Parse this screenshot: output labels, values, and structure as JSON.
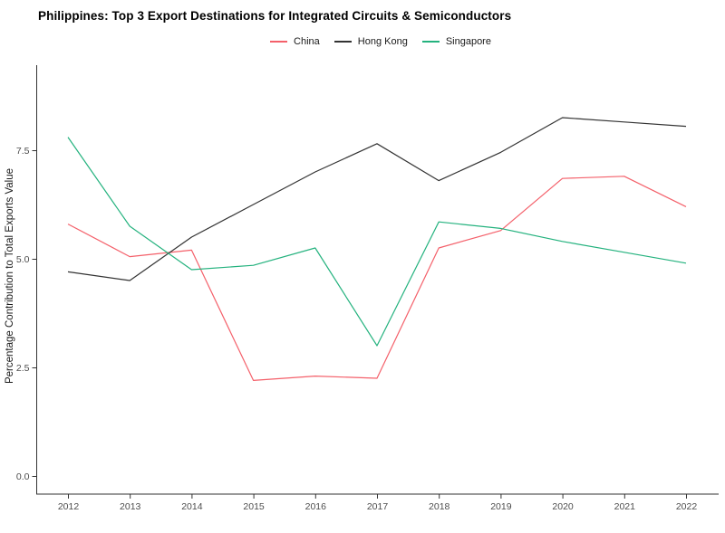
{
  "header": {
    "title": "Philippines: Top 3 Export Destinations for Integrated Circuits & Semiconductors"
  },
  "chart_data": {
    "type": "line",
    "title": "Philippines: Top 3 Export Destinations for Integrated Circuits & Semiconductors",
    "x": [
      2012,
      2013,
      2014,
      2015,
      2016,
      2017,
      2018,
      2019,
      2020,
      2021,
      2022
    ],
    "x_tick_labels": [
      "2012",
      "2013",
      "2014",
      "2015",
      "2016",
      "2017",
      "2018",
      "2019",
      "2020",
      "2021",
      "2022"
    ],
    "series": [
      {
        "name": "China",
        "color": "#f4606a",
        "values": [
          5.8,
          5.05,
          5.2,
          2.2,
          2.3,
          2.25,
          5.25,
          5.65,
          6.85,
          6.9,
          6.2
        ]
      },
      {
        "name": "Hong Kong",
        "color": "#333333",
        "values": [
          4.7,
          4.5,
          5.5,
          6.25,
          7.0,
          7.65,
          6.8,
          7.45,
          8.25,
          8.15,
          8.05
        ]
      },
      {
        "name": "Singapore",
        "color": "#24b27e",
        "values": [
          7.8,
          5.75,
          4.75,
          4.85,
          5.25,
          3.0,
          5.85,
          5.7,
          5.4,
          5.15,
          4.9
        ]
      }
    ],
    "xlabel": "",
    "ylabel": "Percentage Contribution to Total Exports Value",
    "ylim": [
      -0.4,
      9.45
    ],
    "yticks": [
      0.0,
      2.5,
      5.0,
      7.5
    ],
    "ytick_labels": [
      "0.0",
      "2.5",
      "5.0",
      "7.5"
    ],
    "legend_position": "top",
    "grid": false,
    "axis_text_color": "#4d4d4d",
    "axis_line_color": "#333333"
  }
}
